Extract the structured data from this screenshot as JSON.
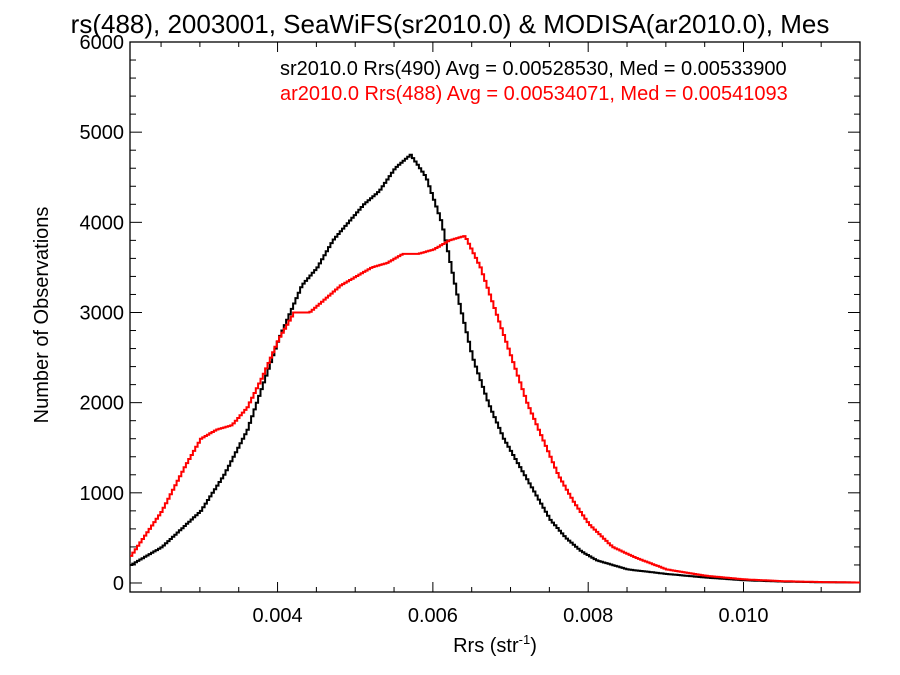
{
  "chart_data": {
    "type": "line",
    "title": "rs(488), 2003001, SeaWiFS(sr2010.0) & MODISA(ar2010.0), Mes",
    "xlabel": "Rrs (str",
    "xlabel_sup": "-1",
    "xlabel_close": ")",
    "ylabel": "Number of Observations",
    "xlim": [
      0.0021,
      0.0115
    ],
    "ylim": [
      -100,
      6000
    ],
    "x_ticks": [
      {
        "value": 0.004,
        "label": "0.004"
      },
      {
        "value": 0.006,
        "label": "0.006"
      },
      {
        "value": 0.008,
        "label": "0.008"
      },
      {
        "value": 0.01,
        "label": "0.010"
      }
    ],
    "y_ticks": [
      {
        "value": 0,
        "label": "0"
      },
      {
        "value": 1000,
        "label": "1000"
      },
      {
        "value": 2000,
        "label": "2000"
      },
      {
        "value": 3000,
        "label": "3000"
      },
      {
        "value": 4000,
        "label": "4000"
      },
      {
        "value": 5000,
        "label": "5000"
      },
      {
        "value": 6000,
        "label": "6000"
      }
    ],
    "grid": false,
    "legend_placement": "top-right",
    "series": [
      {
        "name": "sr2010.0 Rrs(490) Avg = 0.00528530, Med = 0.00533900",
        "color": "#000000",
        "x": [
          0.0021,
          0.0025,
          0.003,
          0.0033,
          0.0036,
          0.004,
          0.0043,
          0.0045,
          0.0047,
          0.0049,
          0.0051,
          0.0053,
          0.0055,
          0.0057,
          0.0059,
          0.0061,
          0.0063,
          0.0065,
          0.0067,
          0.0069,
          0.0071,
          0.0073,
          0.0075,
          0.0077,
          0.0079,
          0.0081,
          0.0085,
          0.009,
          0.0095,
          0.01,
          0.0105,
          0.011,
          0.0115
        ],
        "y": [
          200,
          400,
          800,
          1200,
          1700,
          2700,
          3300,
          3500,
          3800,
          4000,
          4200,
          4350,
          4600,
          4750,
          4500,
          4000,
          3200,
          2500,
          2000,
          1600,
          1300,
          1000,
          700,
          500,
          350,
          250,
          150,
          100,
          60,
          30,
          15,
          8,
          5
        ]
      },
      {
        "name": "ar2010.0 Rrs(488) Avg = 0.00534071, Med = 0.00541093",
        "color": "#ff0000",
        "x": [
          0.0021,
          0.0025,
          0.0028,
          0.003,
          0.0032,
          0.0034,
          0.0036,
          0.0038,
          0.004,
          0.0042,
          0.0044,
          0.0046,
          0.0048,
          0.005,
          0.0052,
          0.0054,
          0.0056,
          0.0058,
          0.006,
          0.0062,
          0.0064,
          0.0066,
          0.0068,
          0.007,
          0.0072,
          0.0074,
          0.0076,
          0.0078,
          0.008,
          0.0083,
          0.0086,
          0.009,
          0.0095,
          0.01,
          0.0105,
          0.011,
          0.0115
        ],
        "y": [
          300,
          800,
          1300,
          1600,
          1700,
          1750,
          1950,
          2300,
          2700,
          3000,
          3000,
          3150,
          3300,
          3400,
          3500,
          3550,
          3650,
          3650,
          3700,
          3800,
          3850,
          3500,
          3000,
          2500,
          2000,
          1600,
          1200,
          900,
          650,
          400,
          280,
          150,
          80,
          40,
          20,
          10,
          5
        ]
      }
    ]
  }
}
